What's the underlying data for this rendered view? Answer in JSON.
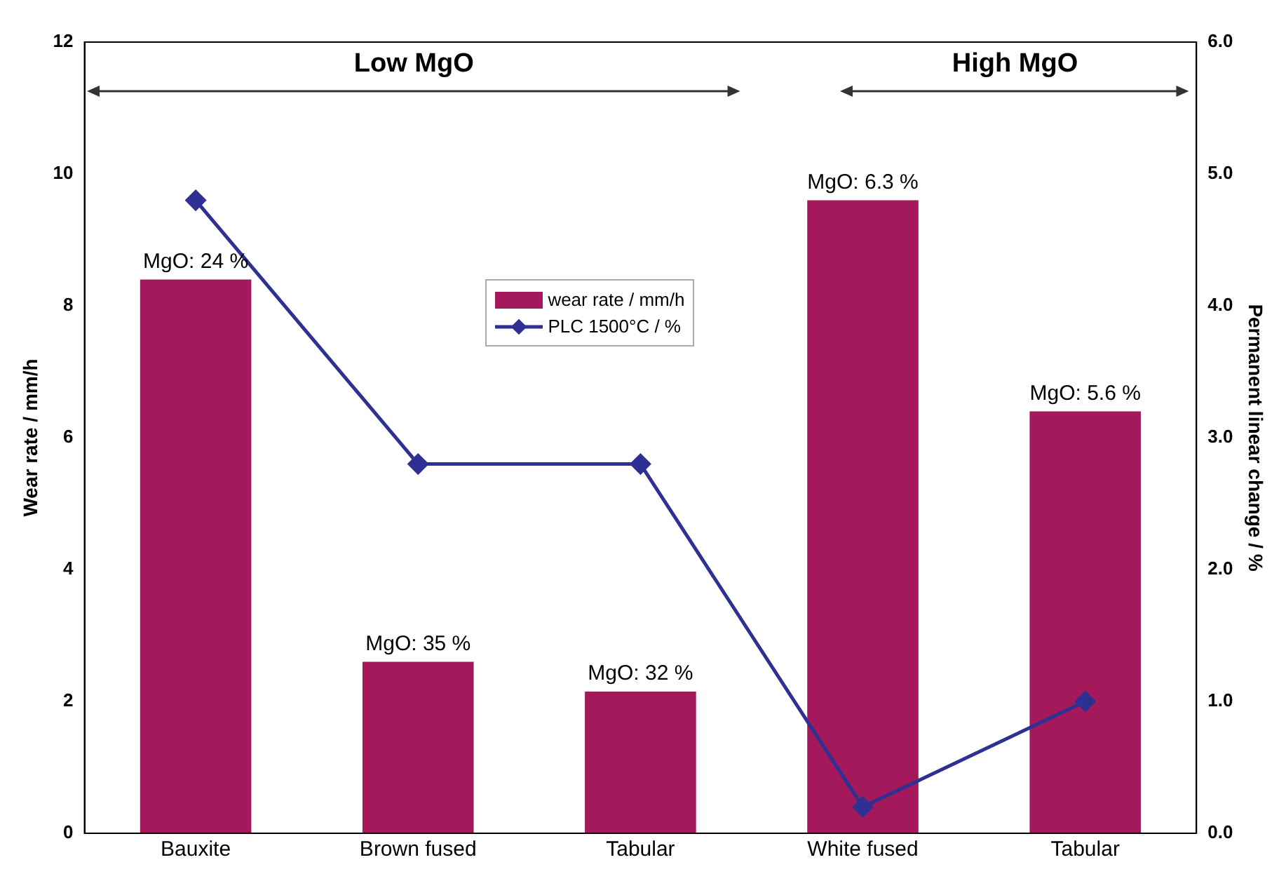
{
  "chart_data": {
    "type": "bar",
    "categories": [
      "Bauxite",
      "Brown fused",
      "Tabular",
      "White fused",
      "Tabular"
    ],
    "ylabel": "Wear rate / mm/h",
    "y2label": "Permanent linear change / %",
    "series": [
      {
        "name": "wear rate / mm/h",
        "color": "#a3195b",
        "values": [
          8.4,
          2.6,
          2.15,
          9.6,
          6.4
        ]
      },
      {
        "name": "PLC 1500°C / %",
        "type": "line",
        "axis": "y2",
        "color": "#2e3192",
        "marker": "diamond",
        "values": [
          4.8,
          2.8,
          2.8,
          0.2,
          1.0
        ]
      }
    ],
    "ylim": [
      0,
      12
    ],
    "yticks": [
      0,
      2,
      4,
      6,
      8,
      10,
      12
    ],
    "y2lim": [
      0,
      6
    ],
    "y2ticks": [
      {
        "value": 0,
        "label": "0.0"
      },
      {
        "value": 1,
        "label": "1.0"
      },
      {
        "value": 2,
        "label": "2.0"
      },
      {
        "value": 3,
        "label": "3.0"
      },
      {
        "value": 4,
        "label": "4.0"
      },
      {
        "value": 5,
        "label": "5.0"
      },
      {
        "value": 6,
        "label": "6.0"
      }
    ],
    "annotations": [
      "Low MgO",
      "High MgO",
      {
        "text": "MgO: 24 %",
        "x": "Bauxite",
        "y": 8.4
      },
      {
        "text": "MgO: 35 %",
        "x": "Brown fused",
        "y": 2.6
      },
      {
        "text": "MgO: 32 %",
        "x": "Tabular",
        "y": 2.15
      },
      {
        "text": "MgO: 6.3 %",
        "x": "White fused",
        "y": 9.6
      },
      "MgO: 5.6 %"
    ],
    "legend": "top",
    "grid": false
  }
}
